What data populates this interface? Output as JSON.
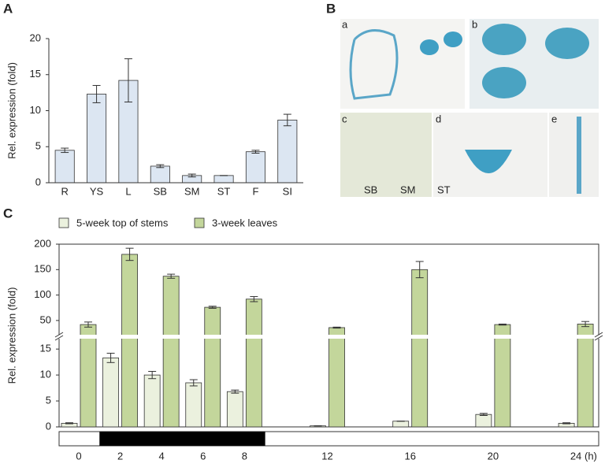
{
  "panel_labels": [
    "A",
    "B",
    "C"
  ],
  "photo_labels": [
    "a",
    "b",
    "c",
    "d",
    "e",
    "SB",
    "SM",
    "ST"
  ],
  "chart_data": [
    {
      "type": "bar",
      "ylabel": "Rel. expression (fold)",
      "categories": [
        "R",
        "YS",
        "L",
        "SB",
        "SM",
        "ST",
        "F",
        "SI"
      ],
      "values": [
        4.5,
        12.3,
        14.2,
        2.3,
        1.0,
        1.0,
        4.3,
        8.7
      ],
      "errors": [
        0.3,
        1.2,
        3.0,
        0.2,
        0.2,
        0,
        0.2,
        0.8
      ],
      "color": "#dce6f2",
      "ylim": [
        0,
        20
      ],
      "yticks": [
        0,
        5,
        10,
        15,
        20
      ]
    },
    {
      "type": "broken_grouped_bar",
      "ylabel": "Rel. expression (fold)",
      "xlabel": "(h)",
      "x": [
        0,
        2,
        4,
        6,
        8,
        12,
        16,
        20,
        24
      ],
      "xlim": [
        -0.95,
        25.1
      ],
      "dark_period": [
        1,
        9
      ],
      "series": [
        {
          "name": "5-week top of stems",
          "color": "#ebf1de",
          "values": [
            0.7,
            13.3,
            10.0,
            8.5,
            6.8,
            0.2,
            1.1,
            2.4,
            0.7
          ],
          "errors": [
            0.1,
            0.9,
            0.7,
            0.6,
            0.3,
            0,
            0,
            0.2,
            0.1
          ]
        },
        {
          "name": "3-week leaves",
          "color": "#c3d69b",
          "values": [
            42,
            180,
            137,
            76,
            92,
            36,
            150,
            42,
            43
          ],
          "errors": [
            5,
            12,
            4,
            2,
            5,
            1,
            16,
            1,
            5
          ]
        }
      ],
      "ylim": [
        0,
        17
      ],
      "yticks": [
        0,
        5,
        10,
        15
      ],
      "ylim_upper": [
        22,
        200
      ],
      "yticks_upper": [
        50,
        100,
        150,
        200
      ],
      "legend": "top"
    }
  ]
}
